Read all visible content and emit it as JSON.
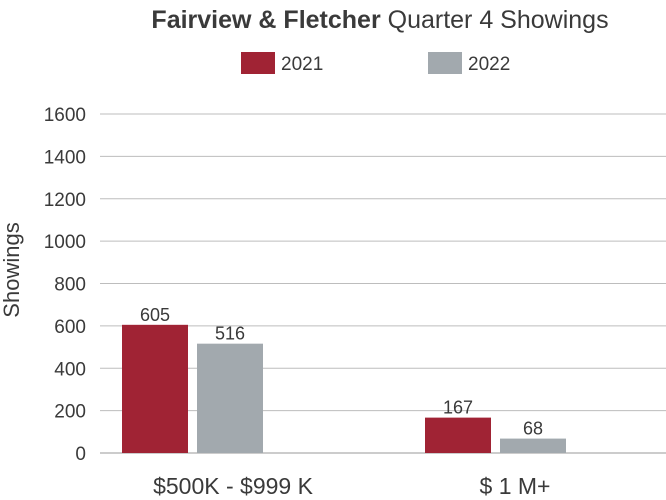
{
  "chart_data": {
    "type": "bar",
    "title_bold": "Fairview & Fletcher",
    "title_rest": " Quarter 4 Showings",
    "xlabel": "",
    "ylabel": "Showings",
    "categories": [
      "$500K - $999 K",
      "$ 1 M+"
    ],
    "series": [
      {
        "name": "2021",
        "color": "#a02334",
        "values": [
          605,
          167
        ]
      },
      {
        "name": "2022",
        "color": "#a2a9ae",
        "values": [
          516,
          68
        ]
      }
    ],
    "ylim": [
      0,
      1600
    ],
    "yticks": [
      "0",
      "200",
      "400",
      "600",
      "800",
      "1000",
      "1200",
      "1400",
      "1600"
    ],
    "grid": true,
    "legend_position": "top-center"
  }
}
